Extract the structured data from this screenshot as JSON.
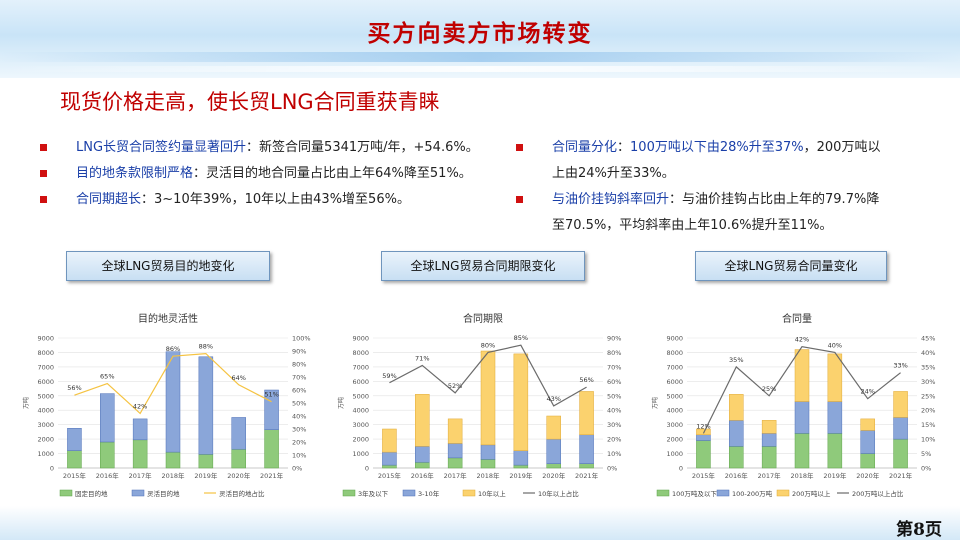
{
  "title": "买方向卖方市场转变",
  "subtitle": "现货价格走高，使长贸LNG合同重获青睐",
  "bullets_left": [
    {
      "label": "LNG长贸合同签约量显著回升",
      "text": "：新签合同量5341万吨/年，+54.6%。"
    },
    {
      "label": "目的地条款限制严格",
      "text": "：灵活目的地合同量占比由上年64%降至51%。"
    },
    {
      "label": "合同期超长",
      "text": "：3~10年39%，10年以上由43%增至56%。"
    }
  ],
  "bullets_right": [
    {
      "label": "合同量分化",
      "text1": "：",
      "hl2": "100万吨以下由28%升至37%",
      "text2": "，200万吨以",
      "cont": "上由24%升至33%。"
    },
    {
      "label": "与油价挂钩斜率回升",
      "text1": "：与油价挂钩占比由上年的79.7%降",
      "cont": "至70.5%，平均斜率由上年10.6%提升至11%。"
    }
  ],
  "buttons": [
    "全球LNG贸易目的地变化",
    "全球LNG贸易合同期限变化",
    "全球LNG贸易合同量变化"
  ],
  "page_label": "第8页",
  "colors": {
    "green": "#8fca7b",
    "blue": "#8aa6d9",
    "yellow": "#fbd26e",
    "line1": "#f5c342",
    "line2": "#6b6b6b"
  },
  "chart_data": [
    {
      "type": "bar",
      "title": "目的地灵活性",
      "ylabel": "万吨",
      "categories": [
        "2015年",
        "2016年",
        "2017年",
        "2018年",
        "2019年",
        "2020年",
        "2021年"
      ],
      "ylim": [
        0,
        9000
      ],
      "ylim2": [
        0,
        100
      ],
      "yticks": [
        "0",
        "1000",
        "2000",
        "3000",
        "4000",
        "5000",
        "6000",
        "7000",
        "8000",
        "9000"
      ],
      "y2ticks": [
        "0%",
        "10%",
        "20%",
        "30%",
        "40%",
        "50%",
        "60%",
        "70%",
        "80%",
        "90%",
        "100%"
      ],
      "series": [
        {
          "name": "固定目的地",
          "values": [
            1200,
            1800,
            1950,
            1100,
            950,
            1300,
            2650
          ]
        },
        {
          "name": "灵活目的地",
          "values": [
            1550,
            3350,
            1450,
            6950,
            6750,
            2200,
            2750
          ]
        }
      ],
      "line": {
        "name": "灵活目的地占比",
        "values": [
          56,
          65,
          42,
          86,
          88,
          64,
          51
        ],
        "labels": [
          "56%",
          "65%",
          "42%",
          "86%",
          "88%",
          "64%",
          "51%"
        ]
      }
    },
    {
      "type": "bar",
      "title": "合同期限",
      "ylabel": "万吨",
      "categories": [
        "2015年",
        "2016年",
        "2017年",
        "2018年",
        "2019年",
        "2020年",
        "2021年"
      ],
      "ylim": [
        0,
        9000
      ],
      "ylim2": [
        0,
        90
      ],
      "yticks": [
        "0",
        "1000",
        "2000",
        "3000",
        "4000",
        "5000",
        "6000",
        "7000",
        "8000",
        "9000"
      ],
      "y2ticks": [
        "0%",
        "10%",
        "20%",
        "30%",
        "40%",
        "50%",
        "60%",
        "70%",
        "80%",
        "90%"
      ],
      "series": [
        {
          "name": "3年及以下",
          "values": [
            200,
            400,
            700,
            600,
            200,
            300,
            300
          ]
        },
        {
          "name": "3-10年",
          "values": [
            900,
            1100,
            1000,
            1000,
            1000,
            1700,
            2000
          ]
        },
        {
          "name": "10年以上",
          "values": [
            1600,
            3600,
            1700,
            6500,
            6700,
            1600,
            3000
          ]
        }
      ],
      "line": {
        "name": "10年以上占比",
        "values": [
          59,
          71,
          52,
          80,
          85,
          43,
          56
        ],
        "labels": [
          "59%",
          "71%",
          "52%",
          "80%",
          "85%",
          "43%",
          "56%"
        ]
      }
    },
    {
      "type": "bar",
      "title": "合同量",
      "ylabel": "万吨",
      "categories": [
        "2015年",
        "2016年",
        "2017年",
        "2018年",
        "2019年",
        "2020年",
        "2021年"
      ],
      "ylim": [
        0,
        9000
      ],
      "ylim2": [
        0,
        45
      ],
      "yticks": [
        "0",
        "1000",
        "2000",
        "3000",
        "4000",
        "5000",
        "6000",
        "7000",
        "8000",
        "9000"
      ],
      "y2ticks": [
        "0%",
        "5%",
        "10%",
        "15%",
        "20%",
        "25%",
        "30%",
        "35%",
        "40%",
        "45%"
      ],
      "series": [
        {
          "name": "100万吨及以下",
          "values": [
            1900,
            1500,
            1500,
            2400,
            2400,
            1000,
            2000
          ]
        },
        {
          "name": "100-200万吨",
          "values": [
            400,
            1800,
            900,
            2200,
            2200,
            1600,
            1500
          ]
        },
        {
          "name": "200万吨以上",
          "values": [
            400,
            1800,
            900,
            3600,
            3300,
            800,
            1800
          ]
        }
      ],
      "line": {
        "name": "200万吨以上占比",
        "values": [
          12,
          35,
          25,
          42,
          40,
          24,
          33
        ],
        "labels": [
          "12%",
          "35%",
          "25%",
          "42%",
          "40%",
          "24%",
          "33%"
        ]
      }
    }
  ]
}
